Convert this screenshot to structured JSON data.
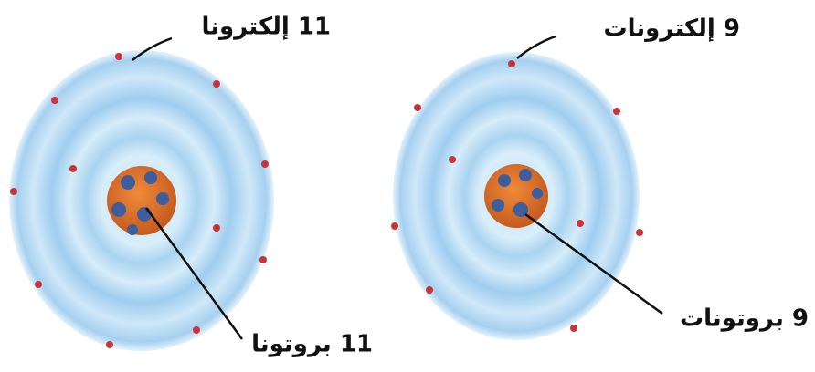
{
  "atoms": [
    {
      "electrons_label": "11 إلكترونا",
      "protons_label": "11 بروتونا"
    },
    {
      "electrons_label": "9 إلكترونات",
      "protons_label": "9 بروتونات"
    }
  ]
}
